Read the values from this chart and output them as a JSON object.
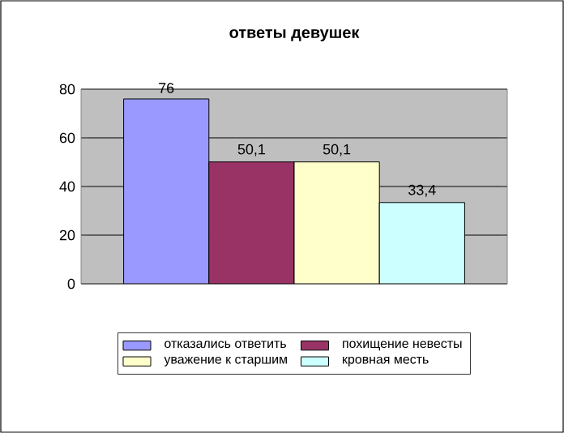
{
  "chart_data": {
    "type": "bar",
    "title": "ответы девушек",
    "categories": [
      null
    ],
    "series": [
      {
        "name": "отказались ответить",
        "color": "#9999ff",
        "values": [
          76
        ],
        "value_labels": [
          "76"
        ]
      },
      {
        "name": "похищение невесты",
        "color": "#993366",
        "values": [
          50.1
        ],
        "value_labels": [
          "50,1"
        ]
      },
      {
        "name": "уважение к старшим",
        "color": "#ffffcc",
        "values": [
          50.1
        ],
        "value_labels": [
          "50,1"
        ]
      },
      {
        "name": "кровная месть",
        "color": "#ccffff",
        "values": [
          33.4
        ],
        "value_labels": [
          "33,4"
        ]
      }
    ],
    "ylim": [
      0,
      80
    ],
    "yticks": [
      0,
      20,
      40,
      60,
      80
    ],
    "grid": "y",
    "legend": "bottom"
  }
}
